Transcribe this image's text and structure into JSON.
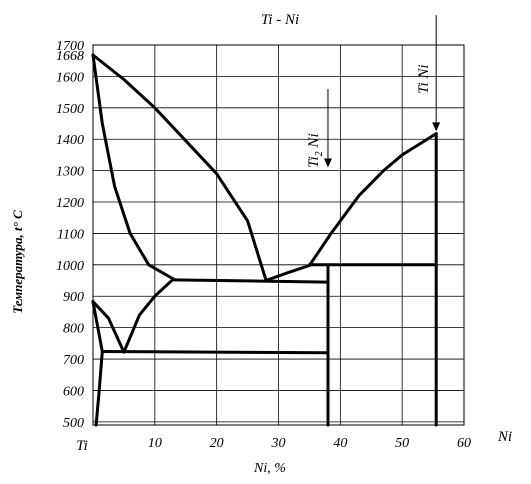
{
  "chart_data": {
    "type": "phase-diagram",
    "title": "Ti - Ni",
    "xlabel": "Ni, %",
    "ylabel": "Температура, t° C",
    "xlim": [
      0,
      60
    ],
    "ylim": [
      490,
      1700
    ],
    "x_ticks": [
      {
        "v": 10,
        "label": "10"
      },
      {
        "v": 20,
        "label": "20"
      },
      {
        "v": 30,
        "label": "30"
      },
      {
        "v": 40,
        "label": "40"
      },
      {
        "v": 50,
        "label": "50"
      },
      {
        "v": 60,
        "label": "60"
      }
    ],
    "x_origin_label": "Ti",
    "x_end_label": "Ni",
    "y_ticks": [
      {
        "v": 1700,
        "label": "1700"
      },
      {
        "v": 1668,
        "label": "1668"
      },
      {
        "v": 1600,
        "label": "1600"
      },
      {
        "v": 1500,
        "label": "1500"
      },
      {
        "v": 1400,
        "label": "1400"
      },
      {
        "v": 1300,
        "label": "1300"
      },
      {
        "v": 1200,
        "label": "1200"
      },
      {
        "v": 1100,
        "label": "1100"
      },
      {
        "v": 1000,
        "label": "1000"
      },
      {
        "v": 900,
        "label": "900"
      },
      {
        "v": 800,
        "label": "800"
      },
      {
        "v": 700,
        "label": "700"
      },
      {
        "v": 600,
        "label": "600"
      },
      {
        "v": 500,
        "label": "500"
      }
    ],
    "grid_x": [
      10,
      20,
      30,
      40,
      50,
      60
    ],
    "grid_y": [
      1600,
      1500,
      1400,
      1300,
      1200,
      1100,
      1000,
      900,
      800,
      700,
      600,
      500
    ],
    "curves": [
      {
        "name": "liquidus-ti-rich",
        "points": [
          [
            0,
            1668
          ],
          [
            5,
            1590
          ],
          [
            10,
            1500
          ],
          [
            15,
            1395
          ],
          [
            20,
            1290
          ],
          [
            25,
            1140
          ],
          [
            28,
            950
          ]
        ]
      },
      {
        "name": "solidus-ti-rich",
        "points": [
          [
            0,
            1668
          ],
          [
            1.5,
            1450
          ],
          [
            3.5,
            1250
          ],
          [
            6,
            1100
          ],
          [
            9,
            1000
          ],
          [
            13,
            955
          ]
        ]
      },
      {
        "name": "solvus-beta",
        "points": [
          [
            13,
            955
          ],
          [
            10,
            900
          ],
          [
            7.5,
            840
          ],
          [
            5,
            722
          ]
        ]
      },
      {
        "name": "eutectic-942",
        "points": [
          [
            13,
            952
          ],
          [
            38,
            945
          ]
        ]
      },
      {
        "name": "liquidus-nini-rich",
        "points": [
          [
            28,
            950
          ],
          [
            31.5,
            975
          ],
          [
            35,
            998
          ]
        ]
      },
      {
        "name": "liquidus-tini",
        "points": [
          [
            35,
            998
          ],
          [
            38.5,
            1100
          ],
          [
            43,
            1220
          ],
          [
            47,
            1300
          ],
          [
            50,
            1350
          ],
          [
            55.5,
            1418
          ]
        ]
      },
      {
        "name": "eutectic-1000",
        "points": [
          [
            35,
            1000
          ],
          [
            55.5,
            1000
          ]
        ]
      },
      {
        "name": "eutectoid-724",
        "points": [
          [
            1.5,
            724
          ],
          [
            38,
            720
          ]
        ]
      },
      {
        "name": "beta-transus-a",
        "points": [
          [
            0,
            883
          ],
          [
            1.5,
            724
          ]
        ]
      },
      {
        "name": "beta-transus-b",
        "points": [
          [
            0,
            883
          ],
          [
            2.5,
            830
          ],
          [
            5,
            722
          ]
        ]
      },
      {
        "name": "alpha-boundary",
        "points": [
          [
            0.5,
            490
          ],
          [
            1,
            600
          ],
          [
            1.5,
            724
          ]
        ]
      },
      {
        "name": "Ti2Ni-line",
        "points": [
          [
            38,
            1000
          ],
          [
            38,
            490
          ]
        ]
      },
      {
        "name": "TiNi-line",
        "points": [
          [
            55.5,
            1418
          ],
          [
            55.5,
            490
          ]
        ]
      }
    ],
    "annotations": [
      {
        "id": "Ti2Ni",
        "label_main": "Ti",
        "label_sub": "2",
        "label_rest": " Ni",
        "arrow_x": 38,
        "arrow_from": 1560,
        "arrow_to": 1310
      },
      {
        "id": "TiNi",
        "label": "Ti Ni",
        "arrow_x": 55.5,
        "arrow_from": 1795,
        "arrow_to": 1425
      }
    ]
  }
}
